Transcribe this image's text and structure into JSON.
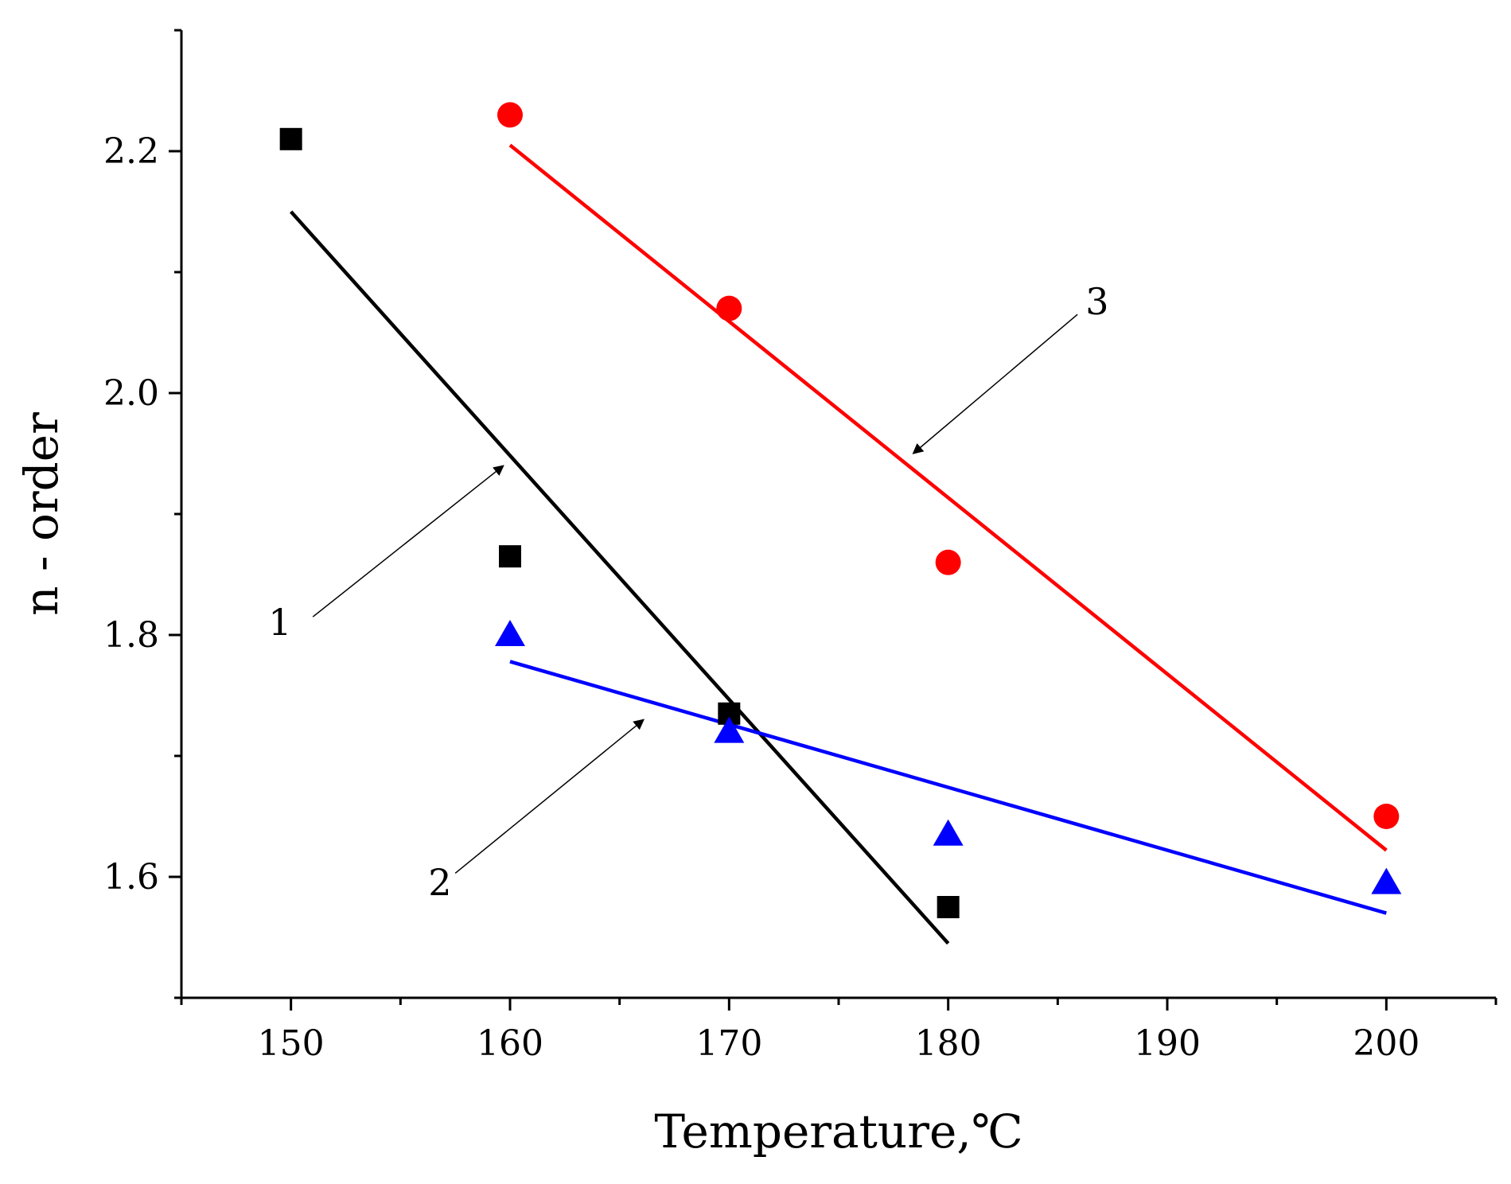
{
  "chart_data": {
    "type": "scatter",
    "title": "",
    "xlabel": "Temperature,℃",
    "ylabel": "n - order",
    "xlim": [
      145,
      205
    ],
    "ylim": [
      1.5,
      2.3
    ],
    "x_ticks": [
      150,
      160,
      170,
      180,
      190,
      200
    ],
    "x_tick_labels": [
      "150",
      "160",
      "170",
      "180",
      "190",
      "200"
    ],
    "y_ticks": [
      1.6,
      1.8,
      2.0,
      2.2
    ],
    "y_tick_labels": [
      "1.6",
      "1.8",
      "2.0",
      "2.2"
    ],
    "grid": false,
    "series": [
      {
        "name": "1",
        "marker": "square",
        "color": "#000000",
        "x": [
          150,
          160,
          170,
          180
        ],
        "y": [
          2.21,
          1.865,
          1.735,
          1.575
        ],
        "fit": {
          "x": [
            150,
            180
          ],
          "y": [
            2.15,
            1.545
          ]
        },
        "callout": {
          "label": "1",
          "text_at": [
            149.5,
            1.8
          ],
          "arrow_from": [
            151.0,
            1.815
          ],
          "arrow_to": [
            159.7,
            1.94
          ]
        }
      },
      {
        "name": "2",
        "marker": "triangle",
        "color": "#0000ff",
        "x": [
          160,
          170,
          180,
          200
        ],
        "y": [
          1.8,
          1.72,
          1.635,
          1.595
        ],
        "fit": {
          "x": [
            160,
            200
          ],
          "y": [
            1.778,
            1.57
          ]
        },
        "callout": {
          "label": "2",
          "text_at": [
            156.8,
            1.585
          ],
          "arrow_from": [
            157.5,
            1.603
          ],
          "arrow_to": [
            166.1,
            1.73
          ]
        }
      },
      {
        "name": "3",
        "marker": "circle",
        "color": "#ff0000",
        "x": [
          160,
          170,
          180,
          200
        ],
        "y": [
          2.23,
          2.07,
          1.86,
          1.65
        ],
        "fit": {
          "x": [
            160,
            200
          ],
          "y": [
            2.205,
            1.622
          ]
        },
        "callout": {
          "label": "3",
          "text_at": [
            186.8,
            2.065
          ],
          "arrow_from": [
            185.9,
            2.065
          ],
          "arrow_to": [
            178.4,
            1.95
          ]
        }
      }
    ]
  }
}
